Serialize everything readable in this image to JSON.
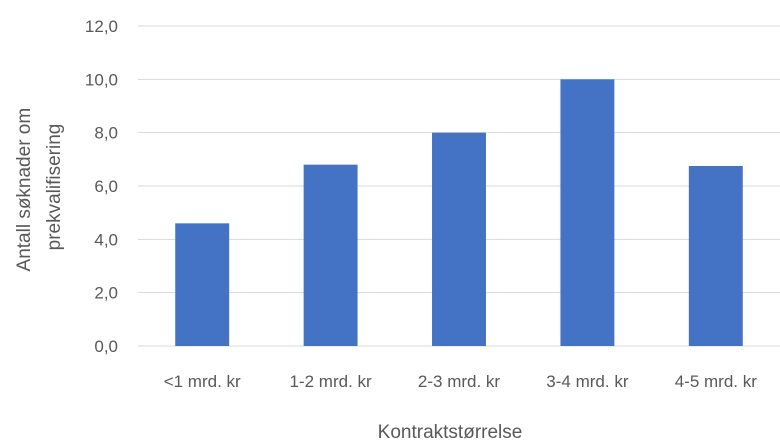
{
  "chart_data": {
    "type": "bar",
    "categories": [
      "<1 mrd. kr",
      "1-2 mrd. kr",
      "2-3 mrd. kr",
      "3-4 mrd. kr",
      "4-5 mrd. kr"
    ],
    "values": [
      4.6,
      6.8,
      8.0,
      10.0,
      6.75
    ],
    "xlabel": "Kontraktstørrelse",
    "ylabel_lines": [
      "Antall søknader om",
      "prekvalifisering"
    ],
    "ylim": [
      0,
      12
    ],
    "yticks": [
      0,
      2,
      4,
      6,
      8,
      10,
      12
    ],
    "ytick_labels": [
      "0,0",
      "2,0",
      "4,0",
      "6,0",
      "8,0",
      "10,0",
      "12,0"
    ],
    "grid": true,
    "legend": "none",
    "bar_color": "#4472C4",
    "grid_color": "#D9D9D9"
  }
}
